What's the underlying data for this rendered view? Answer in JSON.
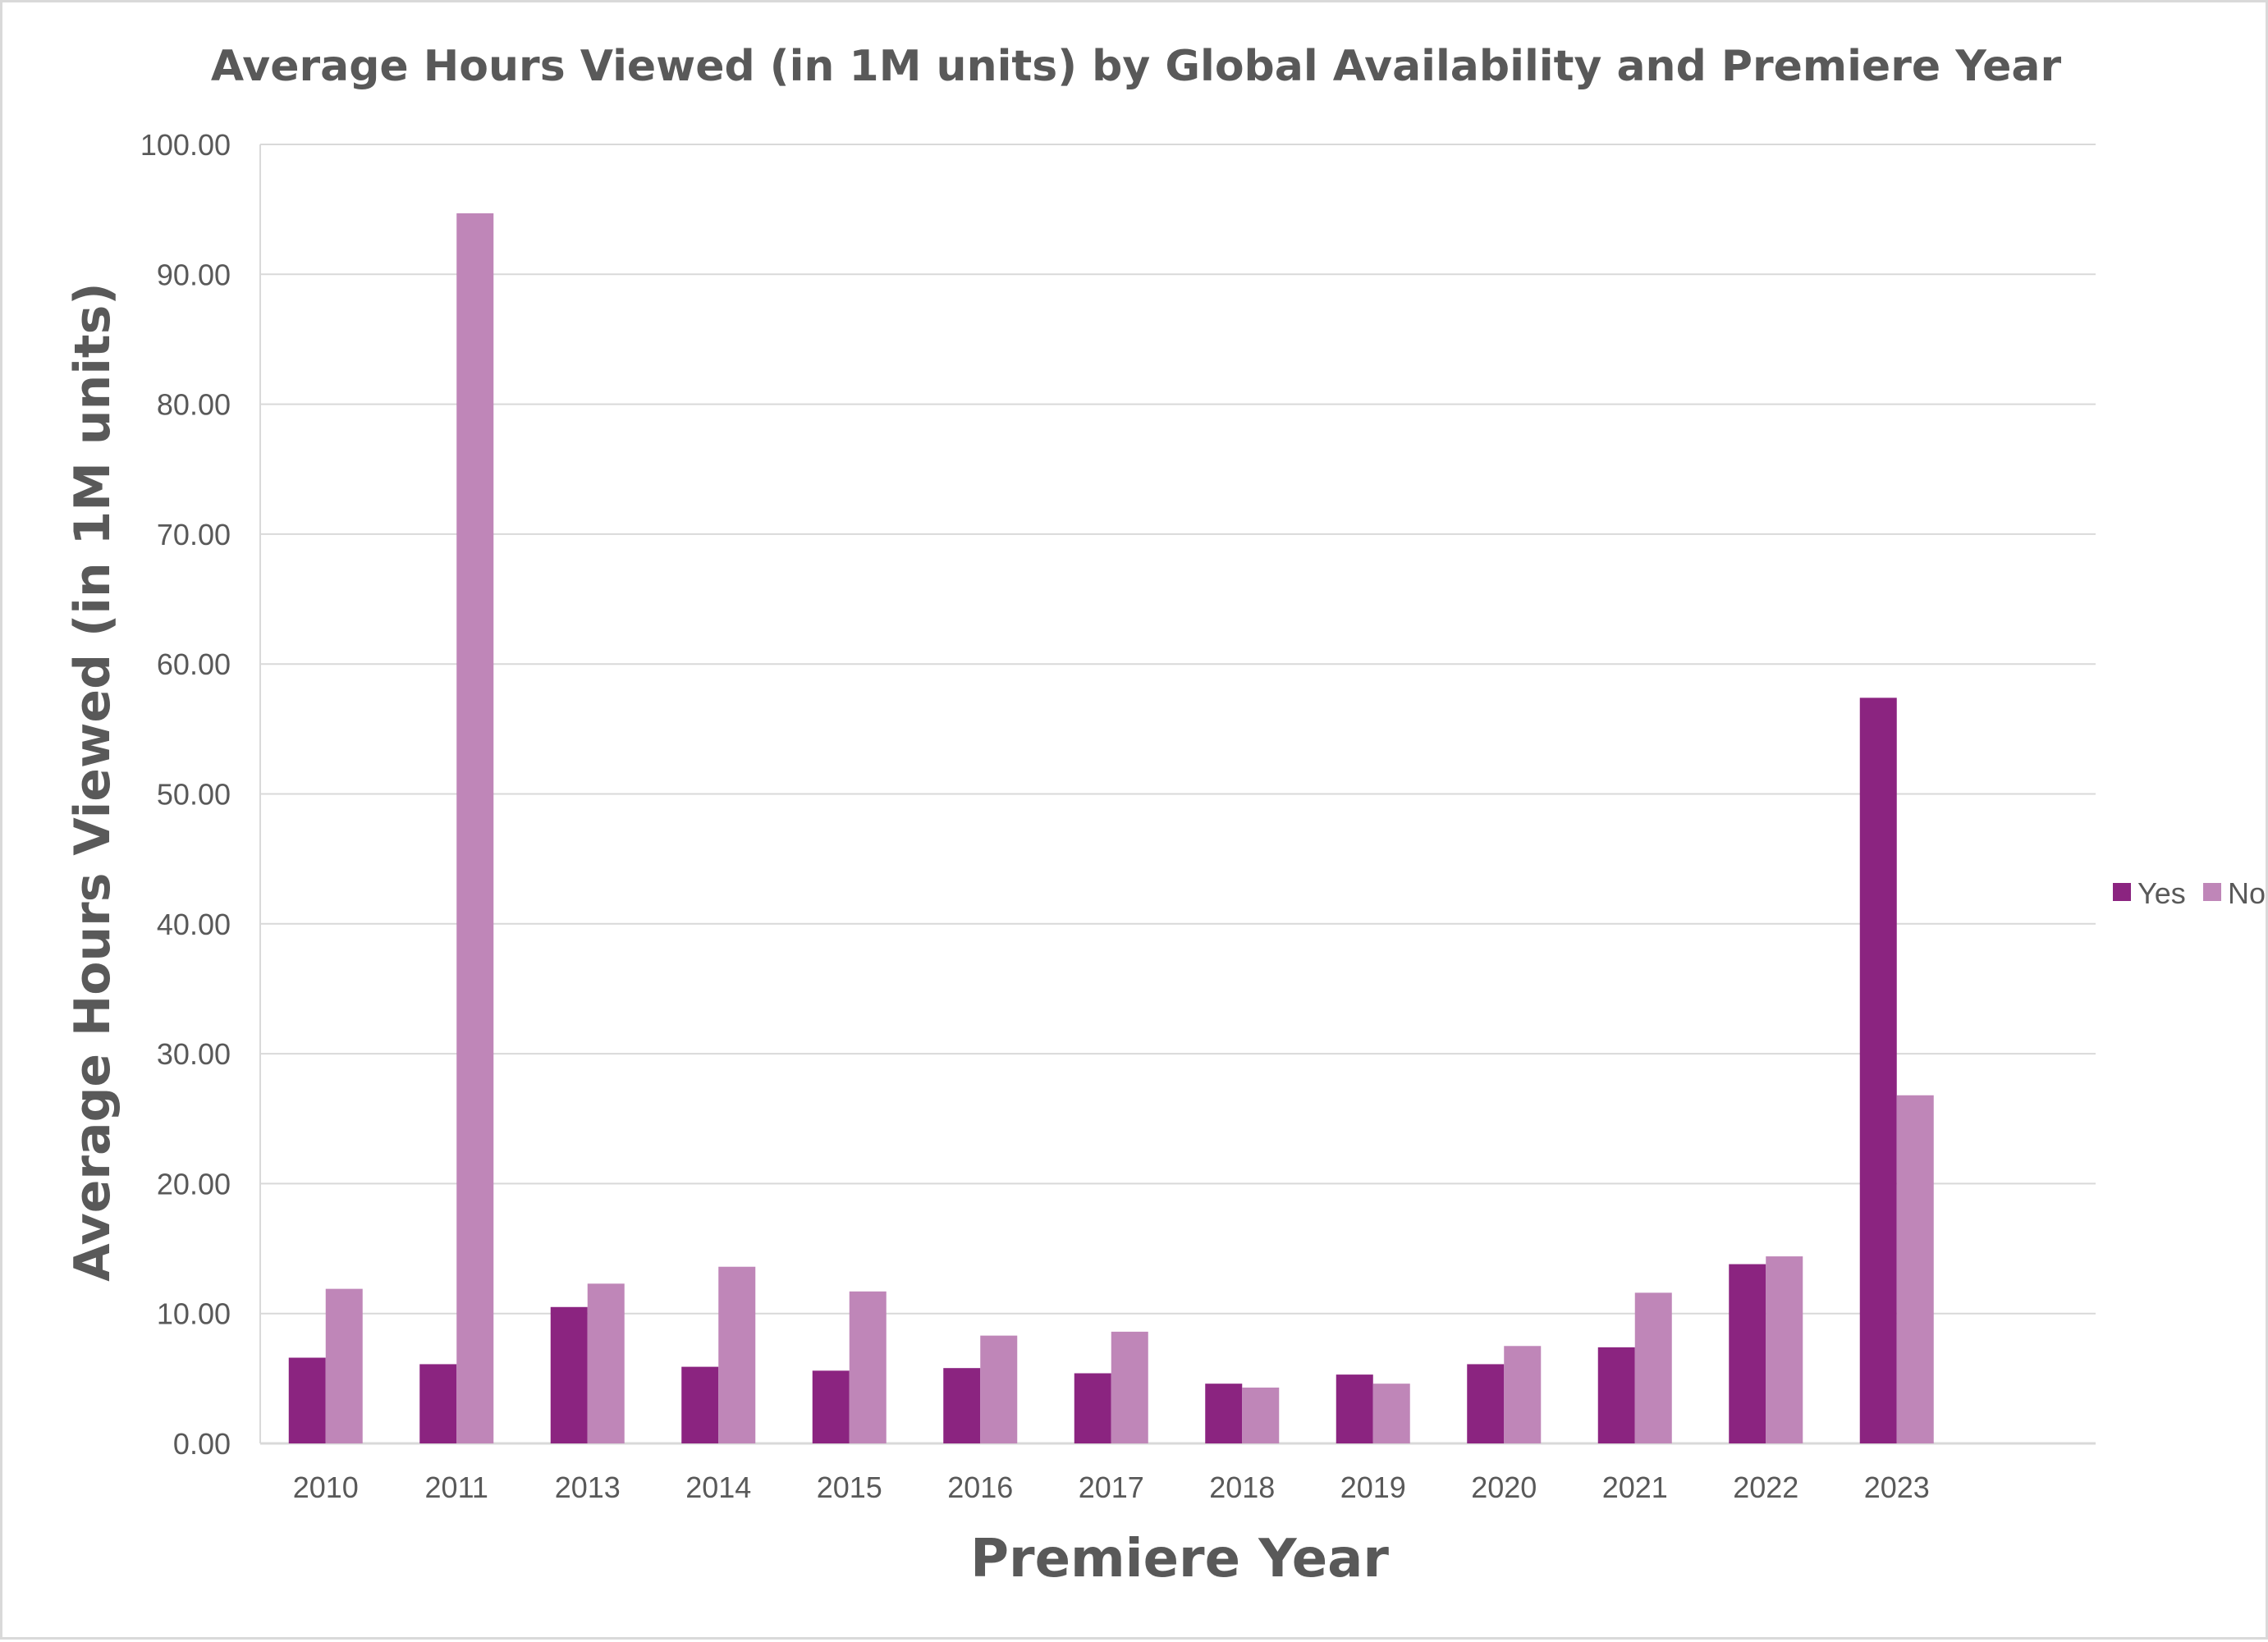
{
  "chart_data": {
    "type": "bar",
    "title": "Average Hours Viewed (in 1M units) by Global Availability and Premiere Year",
    "xlabel": "Premiere Year",
    "ylabel": "Average Hours Viewed (in 1M units)",
    "categories": [
      "2010",
      "2011",
      "2013",
      "2014",
      "2015",
      "2016",
      "2017",
      "2018",
      "2019",
      "2020",
      "2021",
      "2022",
      "2023"
    ],
    "series": [
      {
        "name": "Yes",
        "color": "#8B2480",
        "values": [
          6.6,
          6.1,
          10.5,
          5.9,
          5.6,
          5.8,
          5.4,
          4.6,
          5.3,
          6.1,
          7.4,
          13.8,
          57.4
        ]
      },
      {
        "name": "No",
        "color": "#BF86B8",
        "values": [
          11.9,
          94.7,
          12.3,
          13.6,
          11.7,
          8.3,
          8.6,
          4.3,
          4.6,
          7.5,
          11.6,
          14.4,
          26.8
        ]
      }
    ],
    "ylim": [
      0,
      100
    ],
    "yticks": [
      "0.00",
      "10.00",
      "20.00",
      "30.00",
      "40.00",
      "50.00",
      "60.00",
      "70.00",
      "80.00",
      "90.00",
      "100.00"
    ],
    "grid": true,
    "legend_position": "right"
  },
  "colors": {
    "gridline": "#d9d9d9",
    "axis_text": "#595959",
    "frame": "#d9d9d9"
  }
}
